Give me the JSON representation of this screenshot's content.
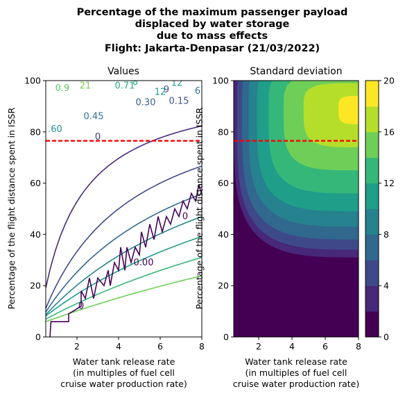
{
  "figure": {
    "title_lines": [
      "Percentage of the maximum passenger payload",
      "displaced by water storage",
      "due to mass effects",
      "Flight: Jakarta-Denpasar (21/03/2022)"
    ]
  },
  "chart_data": [
    {
      "type": "contour",
      "title": "Values",
      "xlabel_lines": [
        "Water tank release rate",
        "(in multiples of fuel cell",
        "cruise water production rate)"
      ],
      "ylabel": "Percentage of the flight distance spent in ISSR",
      "xlim": [
        0.5,
        8
      ],
      "ylim": [
        0,
        100
      ],
      "xticks": [
        "2",
        "4",
        "6",
        "8"
      ],
      "yticks": [
        "0",
        "20",
        "40",
        "60",
        "80",
        "100"
      ],
      "reference_line": {
        "y": 76.5,
        "color": "#ff0000",
        "style": "dashed"
      },
      "contour_labels": [
        {
          "text": "0",
          "x": 2.2,
          "y": 12,
          "color": "#440154"
        },
        {
          "text": "0",
          "x": 3.0,
          "y": 78,
          "color": "#46327e"
        },
        {
          "text": "0.00",
          "x": 5.2,
          "y": 29,
          "color": "#440154"
        },
        {
          "text": "0",
          "x": 7.2,
          "y": 47,
          "color": "#440154"
        },
        {
          "text": "0.15",
          "x": 6.9,
          "y": 92,
          "color": "#3b528b"
        },
        {
          "text": "0.30",
          "x": 5.3,
          "y": 91.5,
          "color": "#365c8d"
        },
        {
          "text": "0.45",
          "x": 2.8,
          "y": 86,
          "color": "#2c728e"
        },
        {
          "text": ".60",
          "x": 0.95,
          "y": 81,
          "color": "#21918c"
        },
        {
          "text": "0.9",
          "x": 1.3,
          "y": 97,
          "color": "#5ec962"
        },
        {
          "text": "21",
          "x": 2.4,
          "y": 98,
          "color": "#7ad151"
        },
        {
          "text": "0.71",
          "x": 4.3,
          "y": 98,
          "color": "#28ae80"
        },
        {
          "text": "12",
          "x": 6.0,
          "y": 95.5,
          "color": "#1f9e89"
        },
        {
          "text": "12",
          "x": 6.8,
          "y": 99,
          "color": "#1f9e89"
        },
        {
          "text": "8",
          "x": 4.8,
          "y": 99.5,
          "color": "#22a884"
        },
        {
          "text": "9",
          "x": 6.3,
          "y": 96.5,
          "color": "#3b528b"
        },
        {
          "text": "6",
          "x": 7.8,
          "y": 96,
          "color": "#2c728e"
        }
      ],
      "contour_levels": [
        {
          "color": "#482878",
          "K": 1.7,
          "x0": 0.1
        },
        {
          "color": "#3e4a89",
          "K": 4.0,
          "x0": 0.0
        },
        {
          "color": "#31688e",
          "K": 6.5,
          "x0": -0.2
        },
        {
          "color": "#26828e",
          "K": 9.5,
          "x0": -0.4
        },
        {
          "color": "#1f9e89",
          "K": 13.5,
          "x0": -0.7
        },
        {
          "color": "#35b779",
          "K": 20.0,
          "x0": -1.0
        },
        {
          "color": "#6ece58",
          "K": 30.0,
          "x0": -1.4
        }
      ],
      "zero_contour": [
        [
          0.7,
          0
        ],
        [
          0.75,
          6
        ],
        [
          1.6,
          6
        ],
        [
          1.6,
          9
        ],
        [
          2.2,
          12
        ],
        [
          2.2,
          18
        ],
        [
          2.4,
          15
        ],
        [
          2.6,
          23
        ],
        [
          2.8,
          15
        ],
        [
          3.0,
          23
        ],
        [
          3.3,
          20
        ],
        [
          3.4,
          23
        ],
        [
          3.5,
          26
        ],
        [
          3.6,
          20
        ],
        [
          3.8,
          29
        ],
        [
          4.0,
          26
        ],
        [
          4.1,
          35
        ],
        [
          4.3,
          26
        ],
        [
          4.4,
          35
        ],
        [
          4.6,
          29
        ],
        [
          4.8,
          35
        ],
        [
          5.0,
          32
        ],
        [
          5.1,
          41
        ],
        [
          5.3,
          35
        ],
        [
          5.5,
          44
        ],
        [
          5.7,
          38
        ],
        [
          5.9,
          47
        ],
        [
          6.1,
          41
        ],
        [
          6.3,
          47
        ],
        [
          6.5,
          44
        ],
        [
          6.7,
          50
        ],
        [
          6.9,
          47
        ],
        [
          7.1,
          53
        ],
        [
          7.3,
          50
        ],
        [
          7.5,
          56
        ],
        [
          7.7,
          53
        ],
        [
          7.85,
          59
        ],
        [
          8.0,
          56
        ]
      ]
    },
    {
      "type": "heatmap",
      "title": "Standard deviation",
      "xlabel_lines": [
        "Water tank release rate",
        "(in multiples of fuel cell",
        "cruise water production rate)"
      ],
      "ylabel": "Percentage of the flight distance spent in ISSR",
      "xlim": [
        0.5,
        8
      ],
      "ylim": [
        0,
        100
      ],
      "xticks": [
        "2",
        "4",
        "6",
        "8"
      ],
      "yticks": [
        "0",
        "20",
        "40",
        "60",
        "80",
        "100"
      ],
      "reference_line": {
        "y": 76.5,
        "color": "#ff0000",
        "style": "dashed"
      },
      "colorbar": {
        "ticks": [
          "0",
          "4",
          "8",
          "12",
          "16",
          "20"
        ],
        "levels": [
          0,
          2,
          4,
          6,
          8,
          10,
          12,
          14,
          16,
          18,
          20
        ],
        "colors": [
          "#440154",
          "#482878",
          "#3e4989",
          "#31688e",
          "#26828e",
          "#1f9e89",
          "#35b779",
          "#6ece58",
          "#b5de2b",
          "#fde725"
        ]
      },
      "fill_bands": [
        {
          "level_index": 1,
          "cx": 8.7,
          "cy": 89,
          "rx": 8.2,
          "ry_up": 30,
          "ry_down": 58
        },
        {
          "level_index": 2,
          "cx": 8.6,
          "cy": 89,
          "rx": 7.9,
          "ry_up": 28,
          "ry_down": 55
        },
        {
          "level_index": 3,
          "cx": 8.5,
          "cy": 89,
          "rx": 7.5,
          "ry_up": 26,
          "ry_down": 51
        },
        {
          "level_index": 4,
          "cx": 8.4,
          "cy": 89,
          "rx": 7.0,
          "ry_up": 24,
          "ry_down": 46
        },
        {
          "level_index": 5,
          "cx": 8.3,
          "cy": 89,
          "rx": 6.4,
          "ry_up": 21,
          "ry_down": 40
        },
        {
          "level_index": 6,
          "cx": 8.2,
          "cy": 89,
          "rx": 5.6,
          "ry_up": 18,
          "ry_down": 33
        },
        {
          "level_index": 7,
          "cx": 8.1,
          "cy": 89,
          "rx": 4.6,
          "ry_up": 14,
          "ry_down": 24
        },
        {
          "level_index": 8,
          "cx": 8.0,
          "cy": 89,
          "rx": 3.3,
          "ry_up": 10,
          "ry_down": 15
        },
        {
          "level_index": 9,
          "cx": 8.0,
          "cy": 89,
          "rx": 1.2,
          "ry_up": 5,
          "ry_down": 6
        }
      ]
    }
  ]
}
